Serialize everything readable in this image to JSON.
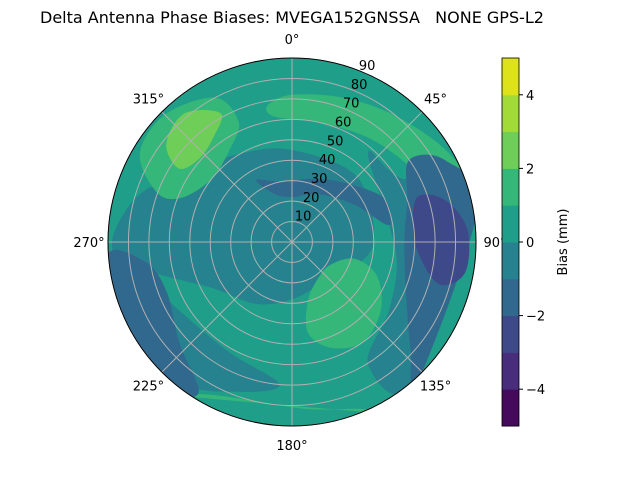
{
  "chart_data": {
    "type": "polar-contour",
    "title": "Delta Antenna Phase Biases: MVEGA152GNSSA   NONE GPS-L2",
    "theta_direction": "clockwise",
    "theta_zero": "north",
    "theta_ticks": [
      "0°",
      "45°",
      "90°",
      "135°",
      "180°",
      "225°",
      "270°",
      "315°"
    ],
    "radial_range": [
      0,
      90
    ],
    "radial_ticks": [
      "10",
      "20",
      "30",
      "40",
      "50",
      "60",
      "70",
      "80",
      "90"
    ],
    "grid": true,
    "colorbar": {
      "label": "Bias (mm)",
      "levels": [
        -5,
        -4,
        -3,
        -2,
        -1,
        0,
        1,
        2,
        3,
        4,
        5
      ],
      "ticks": [
        "−4",
        "−2",
        "0",
        "2",
        "4"
      ],
      "colors": [
        "#450a5c",
        "#472d7b",
        "#3e4989",
        "#31688e",
        "#26828e",
        "#1f9e89",
        "#35b779",
        "#6ece58",
        "#a2da37",
        "#dde318"
      ],
      "colormap": "viridis"
    },
    "background_band": [
      0,
      1
    ],
    "regions": [
      {
        "band": [
          -1,
          0
        ],
        "points": [
          [
            0,
            45
          ],
          [
            45,
            45
          ],
          [
            90,
            40
          ],
          [
            120,
            30
          ],
          [
            150,
            25
          ],
          [
            180,
            28
          ],
          [
            210,
            35
          ],
          [
            240,
            45
          ],
          [
            258,
            70
          ],
          [
            268,
            88
          ],
          [
            285,
            80
          ],
          [
            300,
            65
          ],
          [
            330,
            50
          ]
        ]
      },
      {
        "band": [
          -1,
          0
        ],
        "points": [
          [
            40,
            58
          ],
          [
            60,
            62
          ],
          [
            72,
            90
          ],
          [
            140,
            90
          ],
          [
            148,
            70
          ],
          [
            125,
            58
          ],
          [
            100,
            52
          ],
          [
            70,
            48
          ]
        ]
      },
      {
        "band": [
          -1,
          0
        ],
        "points": [
          [
            185,
            70
          ],
          [
            200,
            78
          ],
          [
            220,
            88
          ],
          [
            250,
            92
          ],
          [
            265,
            92
          ],
          [
            262,
            80
          ],
          [
            240,
            65
          ],
          [
            210,
            62
          ]
        ]
      },
      {
        "band": [
          1,
          2
        ],
        "points": [
          [
            290,
            70
          ],
          [
            300,
            86
          ],
          [
            315,
            88
          ],
          [
            332,
            80
          ],
          [
            336,
            64
          ],
          [
            325,
            54
          ],
          [
            308,
            50
          ],
          [
            292,
            58
          ]
        ]
      },
      {
        "band": [
          1,
          2
        ],
        "points": [
          [
            350,
            68
          ],
          [
            0,
            72
          ],
          [
            20,
            75
          ],
          [
            40,
            80
          ],
          [
            60,
            88
          ],
          [
            75,
            92
          ],
          [
            86,
            86
          ],
          [
            66,
            72
          ],
          [
            40,
            64
          ],
          [
            15,
            60
          ],
          [
            352,
            62
          ]
        ]
      },
      {
        "band": [
          1,
          2
        ],
        "points": [
          [
            105,
            32
          ],
          [
            120,
            22
          ],
          [
            145,
            22
          ],
          [
            165,
            30
          ],
          [
            170,
            45
          ],
          [
            160,
            55
          ],
          [
            145,
            60
          ],
          [
            128,
            55
          ],
          [
            112,
            45
          ]
        ]
      },
      {
        "band": [
          1,
          2
        ],
        "points": [
          [
            158,
            88
          ],
          [
            175,
            82
          ],
          [
            195,
            80
          ],
          [
            210,
            86
          ],
          [
            215,
            92
          ],
          [
            155,
            92
          ]
        ]
      },
      {
        "band": [
          2,
          3
        ],
        "points": [
          [
            303,
            66
          ],
          [
            308,
            78
          ],
          [
            320,
            82
          ],
          [
            331,
            72
          ],
          [
            323,
            64
          ],
          [
            312,
            61
          ]
        ]
      },
      {
        "band": [
          -2,
          -1
        ],
        "points": [
          [
            330,
            35
          ],
          [
            350,
            30
          ],
          [
            20,
            33
          ],
          [
            45,
            40
          ],
          [
            65,
            50
          ],
          [
            80,
            48
          ],
          [
            60,
            36
          ],
          [
            30,
            27
          ],
          [
            0,
            22
          ],
          [
            340,
            25
          ]
        ]
      },
      {
        "band": [
          -2,
          -1
        ],
        "points": [
          [
            55,
            70
          ],
          [
            70,
            60
          ],
          [
            90,
            55
          ],
          [
            112,
            60
          ],
          [
            132,
            78
          ],
          [
            138,
            92
          ],
          [
            80,
            92
          ],
          [
            62,
            85
          ]
        ]
      },
      {
        "band": [
          -2,
          -1
        ],
        "points": [
          [
            212,
            86
          ],
          [
            228,
            74
          ],
          [
            248,
            66
          ],
          [
            262,
            72
          ],
          [
            266,
            90
          ],
          [
            240,
            92
          ],
          [
            218,
            92
          ]
        ]
      },
      {
        "band": [
          -3,
          -2
        ],
        "points": [
          [
            70,
            66
          ],
          [
            80,
            60
          ],
          [
            95,
            62
          ],
          [
            106,
            75
          ],
          [
            100,
            86
          ],
          [
            86,
            86
          ],
          [
            75,
            78
          ]
        ]
      }
    ]
  }
}
